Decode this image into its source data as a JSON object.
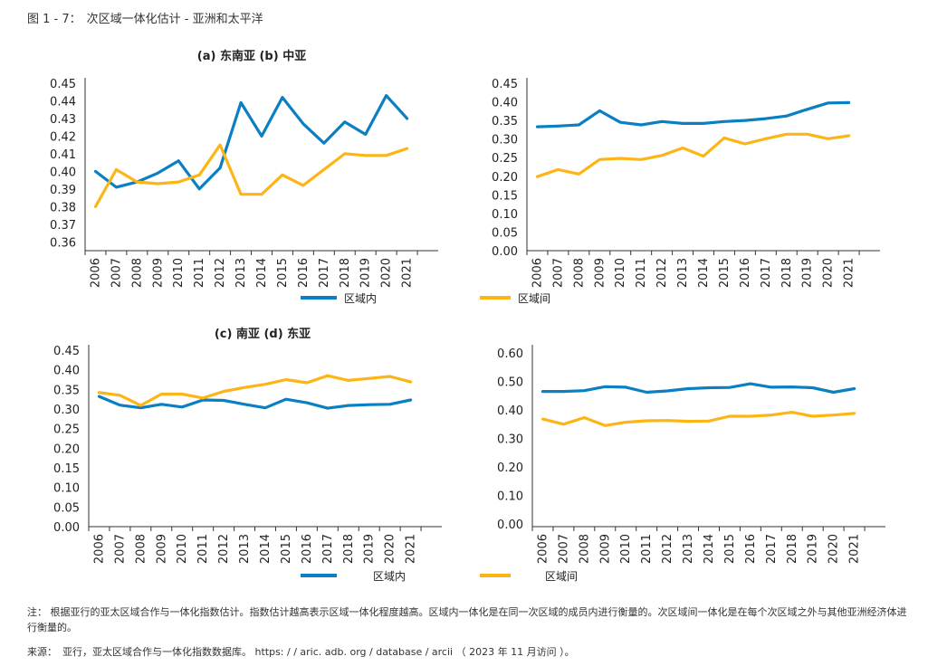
{
  "figure": {
    "label": "图 1 - 7：",
    "title": "次区域一体化估计 - 亚洲和太平洋"
  },
  "colors": {
    "intra": "#0a7fc2",
    "inter": "#fdb515",
    "axis": "#333333"
  },
  "legend": {
    "intra": "区域内",
    "inter": "区域间"
  },
  "chart_data": [
    {
      "type": "line",
      "title": "(a) 东南亚 (b) 中亚",
      "x": [
        "2006",
        "2007",
        "2008",
        "2009",
        "2010",
        "2011",
        "2012",
        "2013",
        "2014",
        "2015",
        "2016",
        "2017",
        "2018",
        "2019",
        "2020",
        "2021"
      ],
      "ylim": [
        0.355,
        0.45
      ],
      "yticks": [
        "0.45",
        "0.44",
        "0.43",
        "0.42",
        "0.41",
        "0.40",
        "0.39",
        "0.38",
        "0.37",
        "0.36"
      ],
      "series": [
        {
          "name": "区域内",
          "values": [
            0.4,
            0.391,
            0.394,
            0.399,
            0.406,
            0.39,
            0.402,
            0.439,
            0.42,
            0.442,
            0.427,
            0.416,
            0.428,
            0.421,
            0.443,
            0.43
          ]
        },
        {
          "name": "区域间",
          "values": [
            0.38,
            0.401,
            0.394,
            0.393,
            0.394,
            0.398,
            0.415,
            0.387,
            0.387,
            0.398,
            0.392,
            0.401,
            0.41,
            0.409,
            0.409,
            0.413
          ]
        }
      ]
    },
    {
      "type": "line",
      "title": "",
      "x": [
        "2006",
        "2007",
        "2008",
        "2009",
        "2010",
        "2011",
        "2012",
        "2013",
        "2014",
        "2015",
        "2016",
        "2017",
        "2018",
        "2019",
        "2020",
        "2021"
      ],
      "ylim": [
        0.0,
        0.45
      ],
      "yticks": [
        "0.45",
        "0.40",
        "0.35",
        "0.30",
        "0.25",
        "0.20",
        "0.15",
        "0.10",
        "0.05",
        "0.00"
      ],
      "series": [
        {
          "name": "区域内",
          "values": [
            0.333,
            0.335,
            0.338,
            0.376,
            0.345,
            0.338,
            0.347,
            0.342,
            0.342,
            0.347,
            0.35,
            0.355,
            0.362,
            0.38,
            0.397,
            0.398
          ]
        },
        {
          "name": "区域间",
          "values": [
            0.199,
            0.218,
            0.206,
            0.245,
            0.248,
            0.245,
            0.256,
            0.276,
            0.254,
            0.303,
            0.287,
            0.301,
            0.313,
            0.313,
            0.301,
            0.309
          ]
        }
      ]
    },
    {
      "type": "line",
      "title": "(c) 南亚 (d) 东亚",
      "x": [
        "2006",
        "2007",
        "2008",
        "2009",
        "2010",
        "2011",
        "2012",
        "2013",
        "2014",
        "2015",
        "2016",
        "2017",
        "2018",
        "2019",
        "2020",
        "2021"
      ],
      "ylim": [
        0.0,
        0.45
      ],
      "yticks": [
        "0.45",
        "0.40",
        "0.35",
        "0.30",
        "0.25",
        "0.20",
        "0.15",
        "0.10",
        "0.05",
        "0.00"
      ],
      "series": [
        {
          "name": "区域内",
          "values": [
            0.332,
            0.31,
            0.303,
            0.312,
            0.305,
            0.323,
            0.322,
            0.312,
            0.303,
            0.325,
            0.316,
            0.302,
            0.309,
            0.311,
            0.312,
            0.323
          ]
        },
        {
          "name": "区域间",
          "values": [
            0.342,
            0.335,
            0.309,
            0.338,
            0.338,
            0.328,
            0.345,
            0.355,
            0.363,
            0.375,
            0.367,
            0.385,
            0.373,
            0.378,
            0.383,
            0.369
          ]
        }
      ]
    },
    {
      "type": "line",
      "title": "",
      "x": [
        "2006",
        "2007",
        "2008",
        "2009",
        "2010",
        "2011",
        "2012",
        "2013",
        "2014",
        "2015",
        "2016",
        "2017",
        "2018",
        "2019",
        "2020",
        "2021"
      ],
      "ylim": [
        -0.01,
        0.61
      ],
      "yticks": [
        "0.60",
        "0.50",
        "0.40",
        "0.30",
        "0.20",
        "0.10",
        "0.00"
      ],
      "series": [
        {
          "name": "区域内",
          "values": [
            0.465,
            0.465,
            0.468,
            0.482,
            0.48,
            0.462,
            0.467,
            0.475,
            0.478,
            0.479,
            0.492,
            0.48,
            0.481,
            0.478,
            0.462,
            0.475
          ]
        },
        {
          "name": "区域间",
          "values": [
            0.368,
            0.35,
            0.373,
            0.345,
            0.357,
            0.362,
            0.363,
            0.36,
            0.361,
            0.378,
            0.378,
            0.382,
            0.392,
            0.378,
            0.382,
            0.388
          ]
        }
      ]
    }
  ],
  "note": {
    "label": "注：",
    "text": "根据亚行的亚太区域合作与一体化指数估计。指数估计越高表示区域一体化程度越高。区域内一体化是在同一次区域的成员内进行衡量的。次区域间一体化是在每个次区域之外与其他亚洲经济体进行衡量的。"
  },
  "source": {
    "label": "来源：",
    "text": "亚行，亚太区域合作与一体化指数数据库。 https: / / aric. adb. org / database / arcii （ 2023 年 11 月访问 ）。"
  }
}
